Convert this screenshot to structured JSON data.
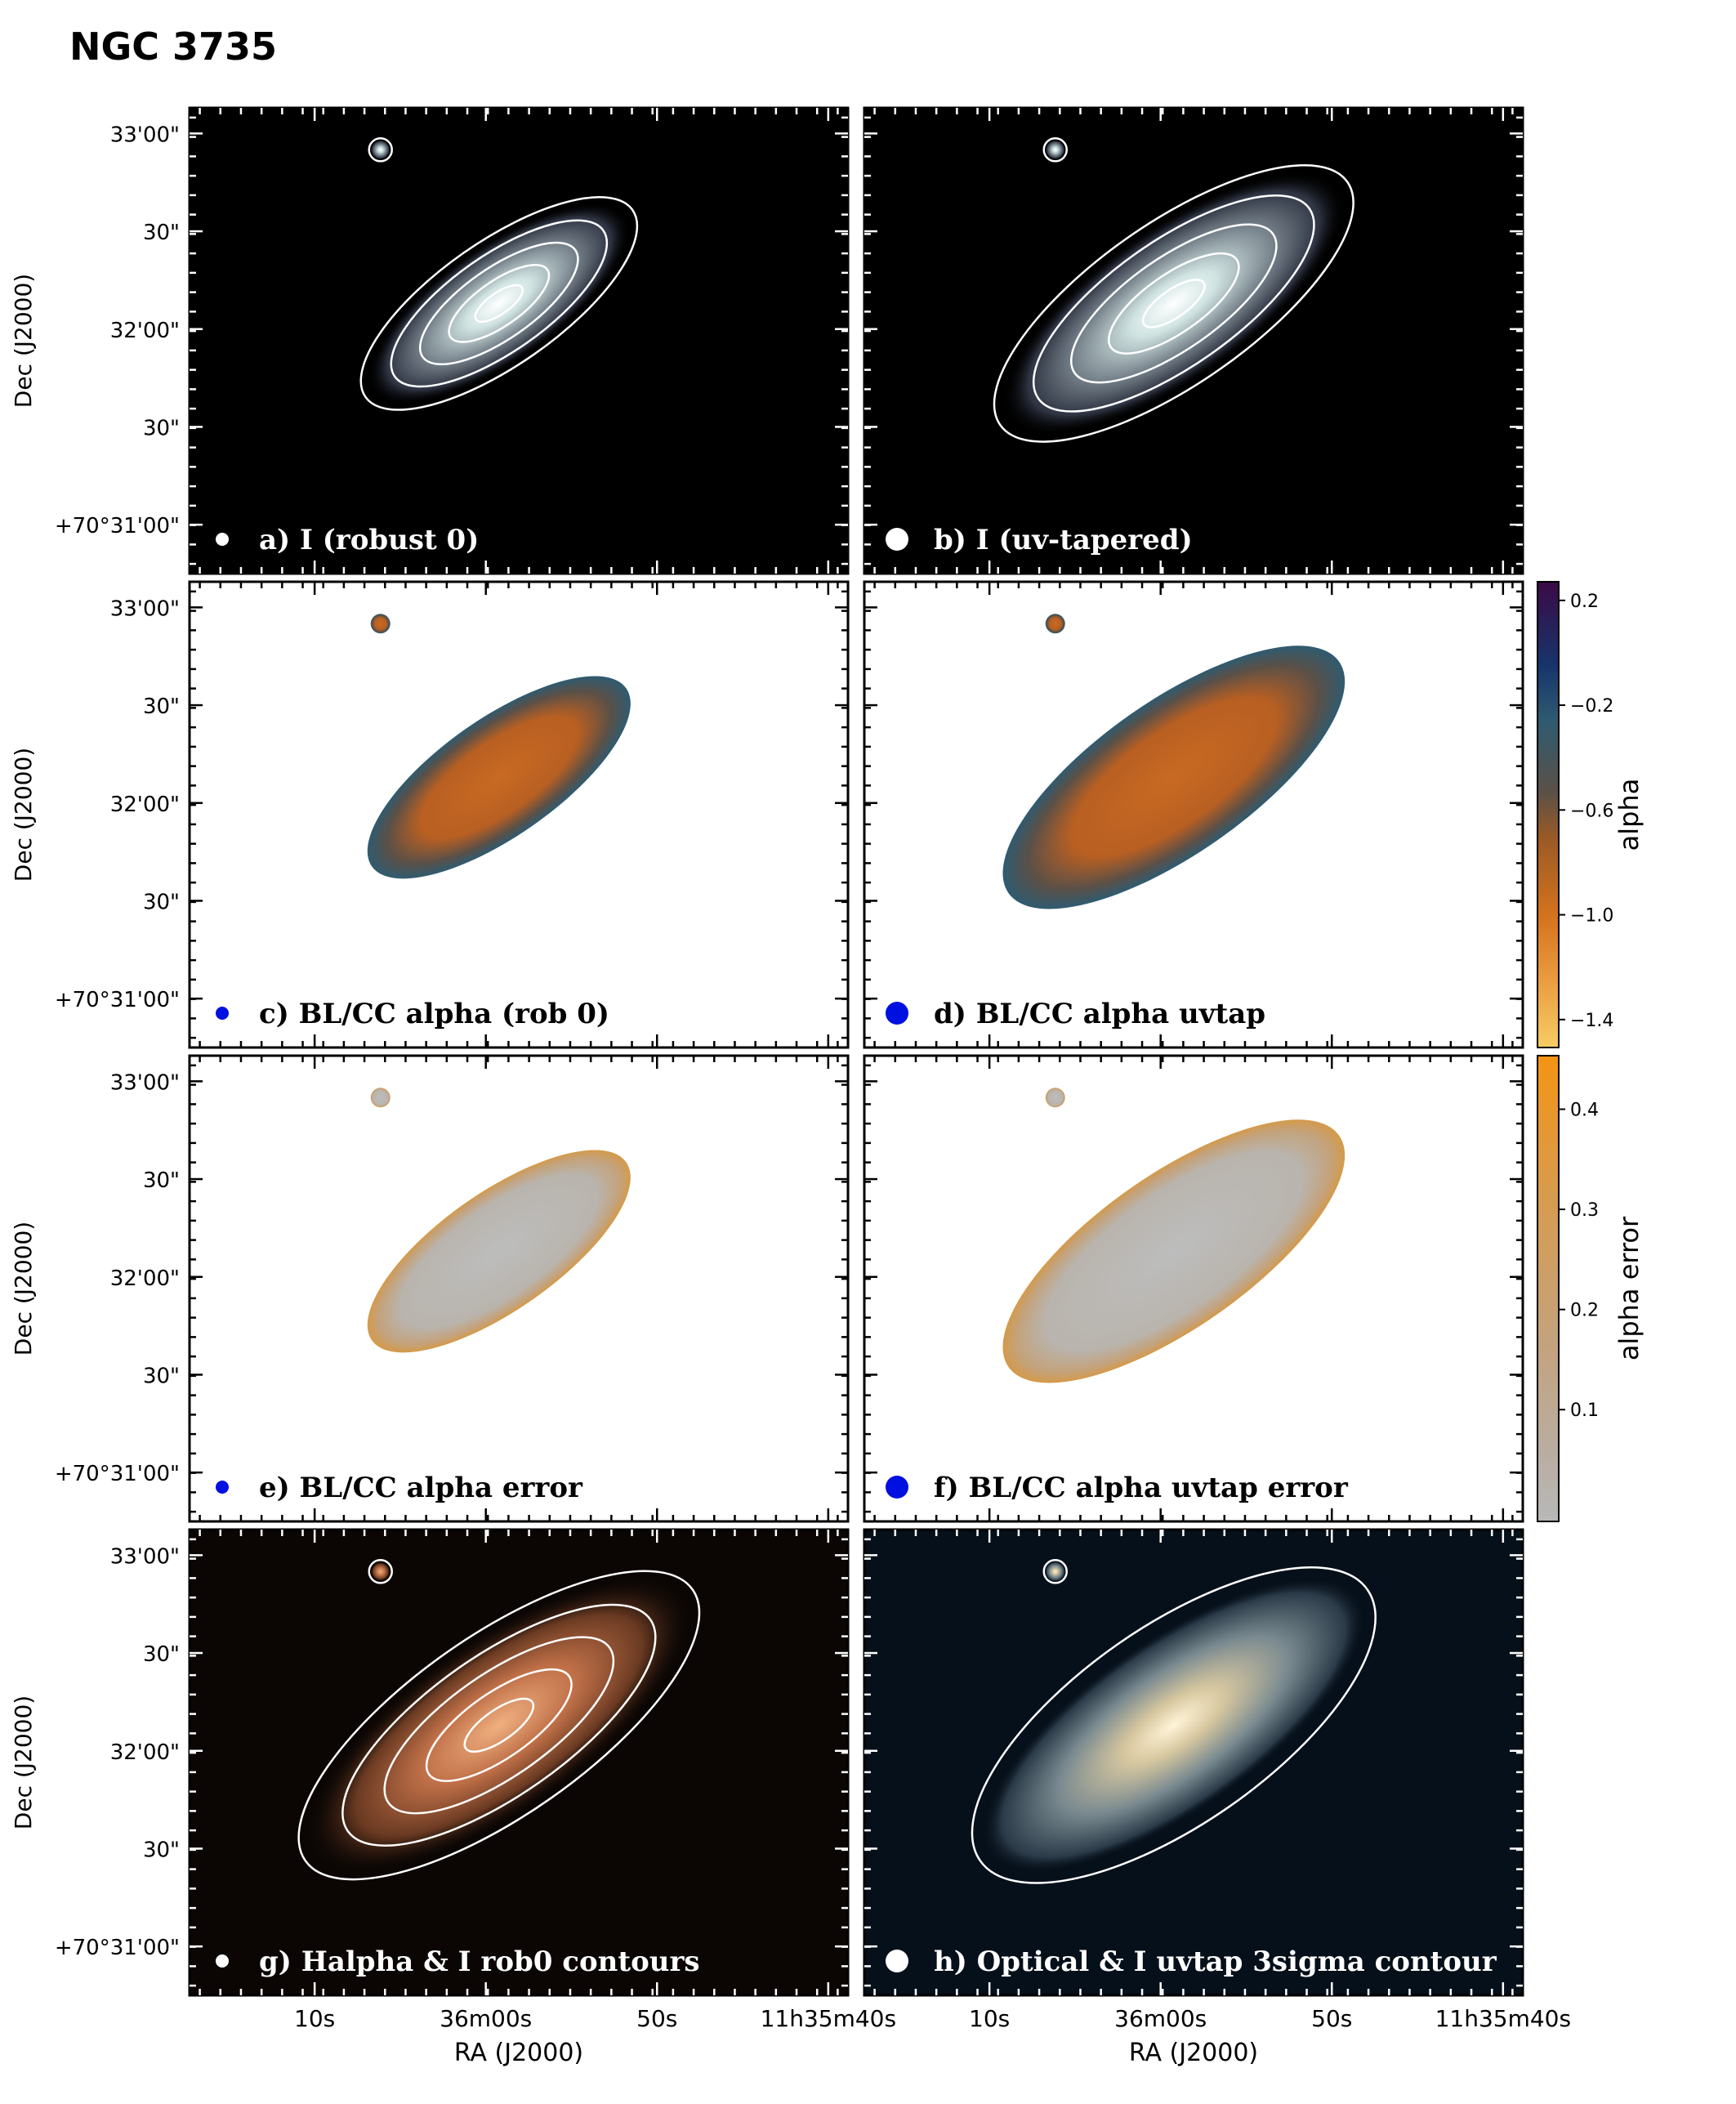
{
  "figure": {
    "title": "NGC 3735",
    "colors": {
      "contour": "#ffffff",
      "beam_white": "#ffffff",
      "beam_blue": "#0010e0"
    }
  },
  "axes": {
    "dec_label": "Dec (J2000)",
    "ra_label": "RA (J2000)",
    "dec_ticks": [
      "33'00\"",
      "30\"",
      "32'00\"",
      "30\"",
      "+70°31'00\""
    ],
    "ra_ticks": [
      "10s",
      "36m00s",
      "50s",
      "11h35m40s"
    ]
  },
  "panels": [
    {
      "id": "a",
      "label": "a) I (robust 0)",
      "style": "intensity",
      "beam": "white-small",
      "label_color": "#ffffff",
      "contours": true
    },
    {
      "id": "b",
      "label": "b) I (uv-tapered)",
      "style": "intensity-taper",
      "beam": "white-large",
      "label_color": "#ffffff",
      "contours": true
    },
    {
      "id": "c",
      "label": "c) BL/CC alpha (rob 0)",
      "style": "alpha",
      "beam": "blue-small",
      "label_color": "#000000",
      "contours": false
    },
    {
      "id": "d",
      "label": "d) BL/CC alpha uvtap",
      "style": "alpha-taper",
      "beam": "blue-large",
      "label_color": "#000000",
      "contours": false
    },
    {
      "id": "e",
      "label": "e)  BL/CC alpha error",
      "style": "error",
      "beam": "blue-small",
      "label_color": "#000000",
      "contours": false
    },
    {
      "id": "f",
      "label": "f) BL/CC alpha uvtap error",
      "style": "error-taper",
      "beam": "blue-large",
      "label_color": "#000000",
      "contours": false
    },
    {
      "id": "g",
      "label": "g) Halpha & I rob0 contours",
      "style": "halpha",
      "beam": "white-small",
      "label_color": "#ffffff",
      "contours": true
    },
    {
      "id": "h",
      "label": "h) Optical & I uvtap 3sigma contour",
      "style": "optical",
      "beam": "white-large",
      "label_color": "#ffffff",
      "contours": true
    }
  ],
  "colorbars": [
    {
      "id": "alpha",
      "label": "alpha",
      "ticks": [
        "0.2",
        "−0.2",
        "−0.6",
        "−1.0",
        "−1.4"
      ],
      "stops": [
        "#3b0a45",
        "#16356b",
        "#2f5b70",
        "#5a5048",
        "#9a5a25",
        "#d4731e",
        "#e99a3f",
        "#f7cc64"
      ]
    },
    {
      "id": "alpha-error",
      "label": "alpha error",
      "ticks": [
        "0.4",
        "0.3",
        "0.2",
        "0.1"
      ],
      "stops": [
        "#f49414",
        "#d79b4e",
        "#c4a27a",
        "#b9ada1",
        "#b8b8b8"
      ]
    }
  ]
}
